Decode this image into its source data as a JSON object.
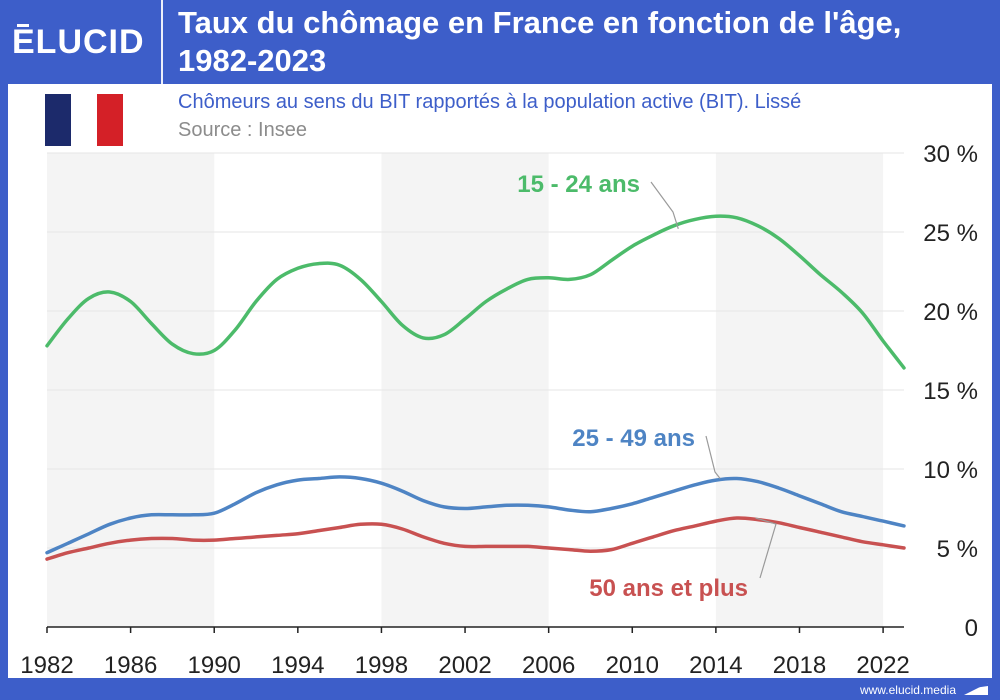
{
  "brand": {
    "logo_text": "ELUCID",
    "url": "www.elucid.media"
  },
  "header": {
    "title": "Taux du chômage en France en fonction de l'âge, 1982-2023"
  },
  "subtitle": "Chômeurs au sens du BIT rapportés à la population active (BIT). Lissé",
  "source": "Source : Insee",
  "flag": {
    "colors": [
      "#1c2a6b",
      "#ffffff",
      "#d42027"
    ]
  },
  "colors": {
    "accent": "#3d5ec9",
    "band": "#f4f4f4",
    "grid": "#e6e6e6",
    "axis": "#222222"
  },
  "chart_data": {
    "type": "line",
    "title": "Taux du chômage en France en fonction de l'âge, 1982-2023",
    "subtitle": "Chômeurs au sens du BIT rapportés à la population active (BIT). Lissé",
    "xlim": [
      1982,
      2023
    ],
    "ylim": [
      0,
      30
    ],
    "x_ticks": [
      1982,
      1986,
      1990,
      1994,
      1998,
      2002,
      2006,
      2010,
      2014,
      2018,
      2022
    ],
    "y_ticks": [
      {
        "v": 0,
        "label": "0"
      },
      {
        "v": 5,
        "label": "5 %"
      },
      {
        "v": 10,
        "label": "10 %"
      },
      {
        "v": 15,
        "label": "15 %"
      },
      {
        "v": 20,
        "label": "20 %"
      },
      {
        "v": 25,
        "label": "25 %"
      },
      {
        "v": 30,
        "label": "30 %"
      }
    ],
    "y_axis_side": "right",
    "grid": true,
    "bands": [
      [
        1982,
        1990
      ],
      [
        1998,
        2006
      ],
      [
        2014,
        2022
      ]
    ],
    "series": [
      {
        "name": "15 - 24 ans",
        "color": "#4cbb6a",
        "x": [
          1982,
          1983,
          1984,
          1985,
          1986,
          1987,
          1988,
          1989,
          1990,
          1991,
          1992,
          1993,
          1994,
          1995,
          1996,
          1997,
          1998,
          1999,
          2000,
          2001,
          2002,
          2003,
          2004,
          2005,
          2006,
          2007,
          2008,
          2009,
          2010,
          2011,
          2012,
          2013,
          2014,
          2015,
          2016,
          2017,
          2018,
          2019,
          2020,
          2021,
          2022,
          2023
        ],
        "y": [
          17.8,
          19.5,
          20.8,
          21.2,
          20.6,
          19.2,
          17.9,
          17.3,
          17.5,
          18.8,
          20.6,
          22.0,
          22.7,
          23.0,
          22.9,
          22.0,
          20.6,
          19.1,
          18.3,
          18.5,
          19.5,
          20.6,
          21.4,
          22.0,
          22.1,
          22.0,
          22.3,
          23.2,
          24.1,
          24.8,
          25.4,
          25.8,
          26.0,
          25.9,
          25.4,
          24.6,
          23.5,
          22.3,
          21.2,
          19.9,
          18.1,
          16.4
        ]
      },
      {
        "name": "25 - 49 ans",
        "color": "#4e84c4",
        "x": [
          1982,
          1983,
          1984,
          1985,
          1986,
          1987,
          1988,
          1989,
          1990,
          1991,
          1992,
          1993,
          1994,
          1995,
          1996,
          1997,
          1998,
          1999,
          2000,
          2001,
          2002,
          2003,
          2004,
          2005,
          2006,
          2007,
          2008,
          2009,
          2010,
          2011,
          2012,
          2013,
          2014,
          2015,
          2016,
          2017,
          2018,
          2019,
          2020,
          2021,
          2022,
          2023
        ],
        "y": [
          4.7,
          5.3,
          5.9,
          6.5,
          6.9,
          7.1,
          7.1,
          7.1,
          7.2,
          7.8,
          8.5,
          9.0,
          9.3,
          9.4,
          9.5,
          9.4,
          9.1,
          8.6,
          8.0,
          7.6,
          7.5,
          7.6,
          7.7,
          7.7,
          7.6,
          7.4,
          7.3,
          7.5,
          7.8,
          8.2,
          8.6,
          9.0,
          9.3,
          9.4,
          9.2,
          8.8,
          8.3,
          7.8,
          7.3,
          7.0,
          6.7,
          6.4
        ]
      },
      {
        "name": "50 ans et plus",
        "color": "#c85151",
        "x": [
          1982,
          1983,
          1984,
          1985,
          1986,
          1987,
          1988,
          1989,
          1990,
          1991,
          1992,
          1993,
          1994,
          1995,
          1996,
          1997,
          1998,
          1999,
          2000,
          2001,
          2002,
          2003,
          2004,
          2005,
          2006,
          2007,
          2008,
          2009,
          2010,
          2011,
          2012,
          2013,
          2014,
          2015,
          2016,
          2017,
          2018,
          2019,
          2020,
          2021,
          2022,
          2023
        ],
        "y": [
          4.3,
          4.7,
          5.0,
          5.3,
          5.5,
          5.6,
          5.6,
          5.5,
          5.5,
          5.6,
          5.7,
          5.8,
          5.9,
          6.1,
          6.3,
          6.5,
          6.5,
          6.2,
          5.7,
          5.3,
          5.1,
          5.1,
          5.1,
          5.1,
          5.0,
          4.9,
          4.8,
          4.9,
          5.3,
          5.7,
          6.1,
          6.4,
          6.7,
          6.9,
          6.8,
          6.6,
          6.3,
          6.0,
          5.7,
          5.4,
          5.2,
          5.0
        ]
      }
    ],
    "annotations": [
      {
        "series": 0,
        "label": "15 - 24 ans",
        "anchor_x": 2012.2,
        "anchor_y": 25.2
      },
      {
        "series": 1,
        "label": "25 - 49 ans",
        "anchor_x": 2014.2,
        "anchor_y": 9.4
      },
      {
        "series": 2,
        "label": "50 ans et plus",
        "anchor_x": 2015.9,
        "anchor_y": 6.9
      }
    ]
  }
}
